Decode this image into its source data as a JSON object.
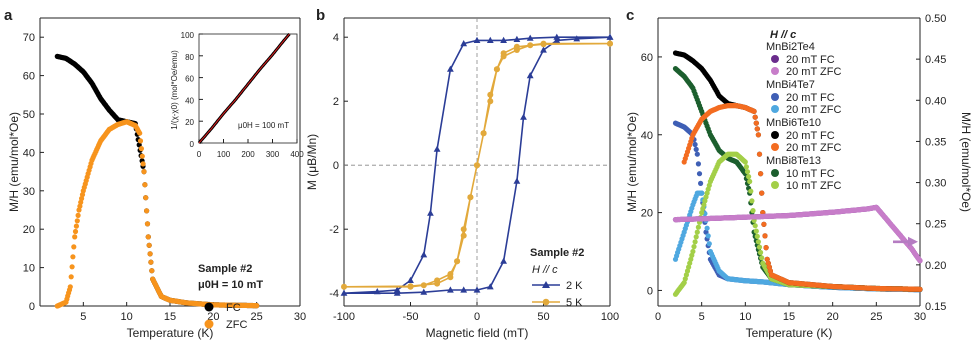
{
  "chart_data": [
    {
      "panel_label": "a",
      "type": "scatter",
      "xlabel": "Temperature (K)",
      "ylabel": "M/H (emu/mol*Oe)",
      "xlim": [
        0,
        30
      ],
      "ylim": [
        0,
        75
      ],
      "xticks": [
        "5",
        "10",
        "15",
        "20",
        "25",
        "30"
      ],
      "yticks": [
        "0",
        "10",
        "20",
        "30",
        "40",
        "50",
        "60",
        "70"
      ],
      "legend": {
        "title": "Sample #2",
        "subtitle": "μ0H = 10 mT",
        "entries": [
          "FC",
          "ZFC"
        ]
      },
      "series": [
        {
          "name": "FC",
          "color": "#000000",
          "points": [
            [
              2,
              65
            ],
            [
              3,
              64.5
            ],
            [
              4,
              63
            ],
            [
              5,
              61
            ],
            [
              6,
              58
            ],
            [
              7,
              54
            ],
            [
              8,
              51
            ],
            [
              9,
              48.5
            ],
            [
              10,
              48
            ],
            [
              11,
              47.5
            ],
            [
              12,
              35
            ],
            [
              12.5,
              18
            ],
            [
              13,
              7
            ],
            [
              14,
              2.5
            ],
            [
              15,
              1.5
            ],
            [
              17,
              0.8
            ],
            [
              20,
              0.3
            ],
            [
              25,
              0.1
            ]
          ]
        },
        {
          "name": "ZFC",
          "color": "#f7941d",
          "points": [
            [
              2,
              0
            ],
            [
              3,
              1
            ],
            [
              3.5,
              5
            ],
            [
              4,
              18
            ],
            [
              4.5,
              25
            ],
            [
              5,
              30
            ],
            [
              6,
              38
            ],
            [
              7,
              43
            ],
            [
              8,
              46
            ],
            [
              9,
              47.3
            ],
            [
              10,
              48
            ],
            [
              11,
              47
            ],
            [
              11.5,
              45
            ],
            [
              12,
              35
            ],
            [
              12.5,
              18
            ],
            [
              13,
              7
            ],
            [
              14,
              2.5
            ],
            [
              15,
              1.5
            ],
            [
              17,
              0.8
            ],
            [
              20,
              0.3
            ],
            [
              25,
              0.1
            ]
          ]
        }
      ],
      "inset": {
        "type": "line",
        "ylabel": "1/(χ-χ0) (mol*Oe/emu)",
        "xlim": [
          0,
          400
        ],
        "ylim": [
          0,
          100
        ],
        "xticks": [
          "0",
          "100",
          "200",
          "300",
          "400"
        ],
        "yticks": [
          "0",
          "20",
          "40",
          "60",
          "80",
          "100"
        ],
        "annotation": "μ0H = 100 mT",
        "data_color": "#000000",
        "fit_color": "#e02020",
        "points": [
          [
            0,
            0
          ],
          [
            50,
            13
          ],
          [
            100,
            27
          ],
          [
            150,
            40
          ],
          [
            200,
            54
          ],
          [
            250,
            68
          ],
          [
            300,
            81
          ],
          [
            350,
            95
          ],
          [
            400,
            108
          ]
        ]
      }
    },
    {
      "panel_label": "b",
      "type": "line",
      "xlabel": "Magnetic field (mT)",
      "ylabel": "M (μB/Mn)",
      "xlim": [
        -100,
        100
      ],
      "ylim": [
        -4.4,
        4.6
      ],
      "xticks": [
        "-100",
        "-50",
        "0",
        "50",
        "100"
      ],
      "yticks": [
        "-4",
        "-2",
        "0",
        "2",
        "4"
      ],
      "legend": {
        "title": "Sample #2",
        "subtitle": "H // c",
        "entries": [
          "2 K",
          "5 K"
        ]
      },
      "series": [
        {
          "name": "2 K",
          "color": "#2b3d97",
          "marker": "triangle",
          "points": [
            [
              100,
              4
            ],
            [
              60,
              4
            ],
            [
              40,
              3.97
            ],
            [
              30,
              3.93
            ],
            [
              20,
              3.9
            ],
            [
              10,
              3.9
            ],
            [
              0,
              3.9
            ],
            [
              -10,
              3.8
            ],
            [
              -20,
              3
            ],
            [
              -30,
              0.5
            ],
            [
              -35,
              -1.5
            ],
            [
              -40,
              -2.8
            ],
            [
              -50,
              -3.6
            ],
            [
              -60,
              -3.9
            ],
            [
              -75,
              -3.95
            ],
            [
              -100,
              -4
            ],
            [
              -60,
              -4
            ],
            [
              -40,
              -3.97
            ],
            [
              -20,
              -3.9
            ],
            [
              -10,
              -3.9
            ],
            [
              0,
              -3.9
            ],
            [
              10,
              -3.8
            ],
            [
              20,
              -3
            ],
            [
              30,
              -0.5
            ],
            [
              35,
              1.5
            ],
            [
              40,
              2.8
            ],
            [
              50,
              3.6
            ],
            [
              60,
              3.9
            ],
            [
              75,
              3.95
            ],
            [
              100,
              4
            ]
          ]
        },
        {
          "name": "5 K",
          "color": "#e2a93b",
          "marker": "circle",
          "points": [
            [
              100,
              3.8
            ],
            [
              50,
              3.8
            ],
            [
              40,
              3.75
            ],
            [
              30,
              3.6
            ],
            [
              20,
              3.4
            ],
            [
              15,
              3
            ],
            [
              10,
              2
            ],
            [
              5,
              1
            ],
            [
              0,
              0
            ],
            [
              -5,
              -1
            ],
            [
              -10,
              -2.2
            ],
            [
              -15,
              -3
            ],
            [
              -20,
              -3.5
            ],
            [
              -30,
              -3.7
            ],
            [
              -50,
              -3.78
            ],
            [
              -100,
              -3.8
            ],
            [
              -50,
              -3.8
            ],
            [
              -40,
              -3.75
            ],
            [
              -30,
              -3.6
            ],
            [
              -20,
              -3.4
            ],
            [
              -15,
              -3
            ],
            [
              -10,
              -2
            ],
            [
              -5,
              -1
            ],
            [
              0,
              0
            ],
            [
              5,
              1
            ],
            [
              10,
              2.2
            ],
            [
              15,
              3
            ],
            [
              20,
              3.5
            ],
            [
              30,
              3.7
            ],
            [
              50,
              3.78
            ],
            [
              100,
              3.8
            ]
          ]
        }
      ]
    },
    {
      "panel_label": "c",
      "type": "scatter",
      "xlabel": "Temperature (K)",
      "ylabel": "M/H (emu/mol*Oe)",
      "ylabel_right": "M/H (emu/mol*Oe)",
      "xlim": [
        0,
        30
      ],
      "ylim": [
        -4,
        70
      ],
      "ylim_right": [
        0.15,
        0.5
      ],
      "xticks": [
        "0",
        "5",
        "10",
        "15",
        "20",
        "25",
        "30"
      ],
      "yticks": [
        "0",
        "20",
        "40",
        "60"
      ],
      "yticks_right": [
        "0.15",
        "0.20",
        "0.25",
        "0.30",
        "0.35",
        "0.40",
        "0.45",
        "0.50"
      ],
      "legend": {
        "title": "H // c",
        "groups": [
          {
            "compound": "MnBi2Te4",
            "entries": [
              "20 mT FC",
              "20 mT ZFC"
            ]
          },
          {
            "compound": "MnBi4Te7",
            "entries": [
              "20 mT FC",
              "20 mT ZFC"
            ]
          },
          {
            "compound": "MnBi6Te10",
            "entries": [
              "20 mT FC",
              "20 mT ZFC"
            ]
          },
          {
            "compound": "MnBi8Te13",
            "entries": [
              "10 mT FC",
              "10 mT ZFC"
            ]
          }
        ]
      },
      "series": [
        {
          "group": "MnBi2Te4",
          "name": "20 mT FC",
          "color": "#6a2c8c",
          "axis": "right",
          "points": [
            [
              2,
              0.255
            ],
            [
              5,
              0.256
            ],
            [
              10,
              0.258
            ],
            [
              15,
              0.26
            ],
            [
              20,
              0.264
            ],
            [
              24,
              0.268
            ],
            [
              25,
              0.27
            ],
            [
              27,
              0.245
            ],
            [
              29,
              0.22
            ],
            [
              30,
              0.205
            ]
          ]
        },
        {
          "group": "MnBi2Te4",
          "name": "20 mT ZFC",
          "color": "#c77dc9",
          "axis": "right",
          "points": [
            [
              2,
              0.255
            ],
            [
              5,
              0.256
            ],
            [
              10,
              0.258
            ],
            [
              15,
              0.26
            ],
            [
              20,
              0.264
            ],
            [
              24,
              0.268
            ],
            [
              25,
              0.27
            ],
            [
              27,
              0.245
            ],
            [
              29,
              0.22
            ],
            [
              30,
              0.205
            ]
          ]
        },
        {
          "group": "MnBi4Te7",
          "name": "20 mT FC",
          "color": "#3f5fb5",
          "axis": "left",
          "points": [
            [
              2,
              43
            ],
            [
              3,
              42
            ],
            [
              4,
              40
            ],
            [
              4.5,
              35
            ],
            [
              5,
              25
            ],
            [
              5.5,
              15
            ],
            [
              6,
              8
            ],
            [
              7,
              4
            ],
            [
              8,
              3
            ],
            [
              10,
              2.5
            ],
            [
              12,
              2.2
            ],
            [
              15,
              1.5
            ],
            [
              20,
              0.8
            ],
            [
              25,
              0.4
            ],
            [
              30,
              0.2
            ]
          ]
        },
        {
          "group": "MnBi4Te7",
          "name": "20 mT ZFC",
          "color": "#4fa8e0",
          "axis": "left",
          "points": [
            [
              2,
              8
            ],
            [
              3,
              15
            ],
            [
              4,
              22
            ],
            [
              4.5,
              25
            ],
            [
              5,
              25
            ],
            [
              5.5,
              18
            ],
            [
              6,
              10
            ],
            [
              7,
              5
            ],
            [
              8,
              3
            ],
            [
              10,
              2.5
            ],
            [
              12,
              2.2
            ],
            [
              15,
              1.5
            ],
            [
              20,
              0.8
            ],
            [
              25,
              0.4
            ],
            [
              30,
              0.2
            ]
          ]
        },
        {
          "group": "MnBi6Te10",
          "name": "20 mT FC",
          "color": "#000000",
          "axis": "left",
          "points": [
            [
              2,
              61
            ],
            [
              3,
              60.5
            ],
            [
              4,
              59
            ],
            [
              5,
              57
            ],
            [
              6,
              54
            ],
            [
              7,
              50
            ],
            [
              8,
              48
            ],
            [
              9,
              47.5
            ],
            [
              10,
              47
            ],
            [
              11,
              46
            ],
            [
              11.5,
              40
            ],
            [
              12,
              20
            ],
            [
              12.5,
              8
            ],
            [
              13,
              4
            ],
            [
              15,
              2
            ],
            [
              20,
              1
            ],
            [
              25,
              0.5
            ],
            [
              30,
              0.3
            ]
          ]
        },
        {
          "group": "MnBi6Te10",
          "name": "20 mT ZFC",
          "color": "#f36c21",
          "axis": "left",
          "points": [
            [
              3,
              33
            ],
            [
              4,
              40
            ],
            [
              5,
              44
            ],
            [
              6,
              46
            ],
            [
              7,
              47
            ],
            [
              8,
              47.5
            ],
            [
              9,
              47.5
            ],
            [
              10,
              47
            ],
            [
              11,
              46
            ],
            [
              11.5,
              40
            ],
            [
              12,
              20
            ],
            [
              12.5,
              8
            ],
            [
              13,
              4
            ],
            [
              15,
              2
            ],
            [
              20,
              1
            ],
            [
              25,
              0.5
            ],
            [
              30,
              0.3
            ]
          ]
        },
        {
          "group": "MnBi8Te13",
          "name": "10 mT FC",
          "color": "#1c5f2e",
          "axis": "left",
          "points": [
            [
              2,
              57
            ],
            [
              3,
              55
            ],
            [
              4,
              52
            ],
            [
              5,
              46
            ],
            [
              6,
              40
            ],
            [
              7,
              36
            ],
            [
              8,
              34
            ],
            [
              9,
              33
            ],
            [
              10,
              30
            ],
            [
              10.5,
              25
            ],
            [
              11,
              15
            ],
            [
              12,
              6
            ],
            [
              13,
              3
            ],
            [
              15,
              1.5
            ],
            [
              20,
              1
            ],
            [
              25,
              0.5
            ],
            [
              30,
              0.3
            ]
          ]
        },
        {
          "group": "MnBi8Te13",
          "name": "10 mT ZFC",
          "color": "#a3cf48",
          "axis": "left",
          "points": [
            [
              2,
              -1
            ],
            [
              3,
              2
            ],
            [
              4,
              10
            ],
            [
              5,
              20
            ],
            [
              6,
              28
            ],
            [
              7,
              33
            ],
            [
              8,
              35
            ],
            [
              9,
              35
            ],
            [
              10,
              33
            ],
            [
              10.5,
              28
            ],
            [
              11,
              18
            ],
            [
              12,
              7
            ],
            [
              13,
              3
            ],
            [
              15,
              1.5
            ],
            [
              20,
              1
            ],
            [
              25,
              0.5
            ],
            [
              30,
              0.3
            ]
          ]
        }
      ],
      "arrow_color": "#b57cc2"
    }
  ]
}
